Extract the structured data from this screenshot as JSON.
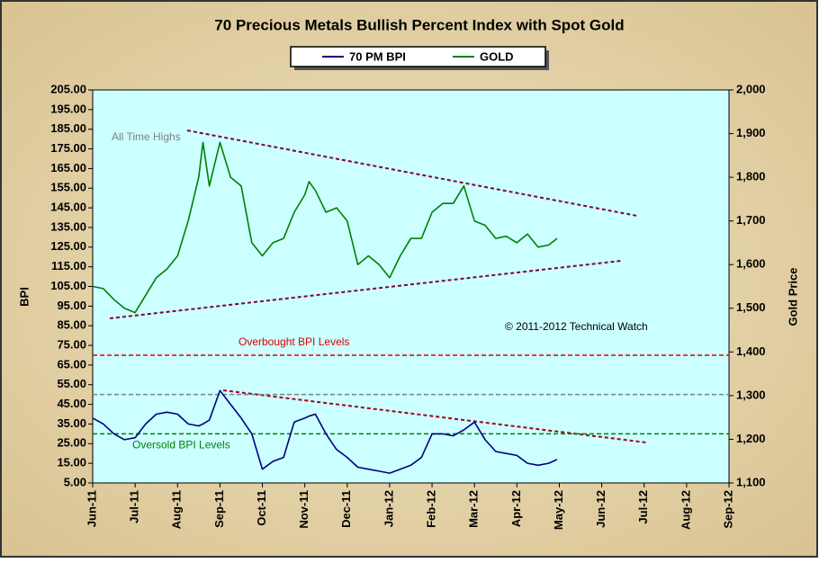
{
  "chart_data": {
    "type": "line",
    "title": "70 Precious Metals Bullish  Percent Index with Spot Gold",
    "y_label": "BPI",
    "y2_label": "Gold Price",
    "annotations": [
      "All Time Highs",
      "© 2011-2012  Technical Watch"
    ],
    "xlim": [
      0,
      15
    ],
    "xticks": [
      {
        "value": 0,
        "label": "Jun-11"
      },
      {
        "value": 1,
        "label": "Jul-11"
      },
      {
        "value": 2,
        "label": "Aug-11"
      },
      {
        "value": 3,
        "label": "Sep-11"
      },
      {
        "value": 4,
        "label": "Oct-11"
      },
      {
        "value": 5,
        "label": "Nov-11"
      },
      {
        "value": 6,
        "label": "Dec-11"
      },
      {
        "value": 7,
        "label": "Jan-12"
      },
      {
        "value": 8,
        "label": "Feb-12"
      },
      {
        "value": 9,
        "label": "Mar-12"
      },
      {
        "value": 10,
        "label": "Apr-12"
      },
      {
        "value": 11,
        "label": "May-12"
      },
      {
        "value": 12,
        "label": "Jun-12"
      },
      {
        "value": 13,
        "label": "Jul-12"
      },
      {
        "value": 14,
        "label": "Aug-12"
      },
      {
        "value": 15,
        "label": "Sep-12"
      }
    ],
    "ylim": [
      5,
      205
    ],
    "yticks": [
      {
        "value": 5,
        "label": "5.00"
      },
      {
        "value": 15,
        "label": "15.00"
      },
      {
        "value": 25,
        "label": "25.00"
      },
      {
        "value": 35,
        "label": "35.00"
      },
      {
        "value": 45,
        "label": "45.00"
      },
      {
        "value": 55,
        "label": "55.00"
      },
      {
        "value": 65,
        "label": "65.00"
      },
      {
        "value": 75,
        "label": "75.00"
      },
      {
        "value": 85,
        "label": "85.00"
      },
      {
        "value": 95,
        "label": "95.00"
      },
      {
        "value": 105,
        "label": "105.00"
      },
      {
        "value": 115,
        "label": "115.00"
      },
      {
        "value": 125,
        "label": "125.00"
      },
      {
        "value": 135,
        "label": "135.00"
      },
      {
        "value": 145,
        "label": "145.00"
      },
      {
        "value": 155,
        "label": "155.00"
      },
      {
        "value": 165,
        "label": "165.00"
      },
      {
        "value": 175,
        "label": "175.00"
      },
      {
        "value": 185,
        "label": "185.00"
      },
      {
        "value": 195,
        "label": "195.00"
      },
      {
        "value": 205,
        "label": "205.00"
      }
    ],
    "y2lim": [
      1100,
      2000
    ],
    "y2ticks": [
      {
        "value": 1100,
        "label": "1,100"
      },
      {
        "value": 1200,
        "label": "1,200"
      },
      {
        "value": 1300,
        "label": "1,300"
      },
      {
        "value": 1400,
        "label": "1,400"
      },
      {
        "value": 1500,
        "label": "1,500"
      },
      {
        "value": 1600,
        "label": "1,600"
      },
      {
        "value": 1700,
        "label": "1,700"
      },
      {
        "value": 1800,
        "label": "1,800"
      },
      {
        "value": 1900,
        "label": "1,900"
      },
      {
        "value": 2000,
        "label": "2,000"
      }
    ],
    "reference_lines": [
      {
        "value": 70,
        "color": "#e00000",
        "label": "Overbought  BPI Levels"
      },
      {
        "value": 30,
        "color": "#008000",
        "label": "Oversold  BPI Levels"
      },
      {
        "value": 50,
        "color": "#808080"
      }
    ],
    "x": [
      0,
      0.25,
      0.5,
      0.75,
      1,
      1.25,
      1.5,
      1.75,
      2,
      2.25,
      2.5,
      2.6,
      2.75,
      3,
      3.25,
      3.5,
      3.75,
      4,
      4.25,
      4.5,
      4.75,
      5,
      5.1,
      5.25,
      5.5,
      5.75,
      6,
      6.25,
      6.5,
      6.75,
      7,
      7.25,
      7.5,
      7.75,
      8,
      8.25,
      8.5,
      8.75,
      9,
      9.25,
      9.5,
      9.75,
      10,
      10.25,
      10.5,
      10.75,
      10.95
    ],
    "series": [
      {
        "name": "70 PM BPI",
        "color": "#000080",
        "values": [
          38,
          35,
          30,
          27,
          28,
          35,
          40,
          41,
          40,
          35,
          34,
          35,
          37,
          52,
          45,
          38,
          30,
          12,
          16,
          18,
          36,
          38,
          39,
          40,
          30,
          22,
          18,
          13,
          12,
          11,
          10,
          12,
          14,
          18,
          30,
          30,
          29,
          32,
          36,
          27,
          21,
          20,
          19,
          15,
          14,
          15,
          17
        ]
      },
      {
        "name": "GOLD",
        "color": "#008000",
        "axis": "y2",
        "values": [
          1550,
          1545,
          1520,
          1500,
          1490,
          1530,
          1570,
          1590,
          1620,
          1700,
          1800,
          1880,
          1780,
          1880,
          1800,
          1780,
          1650,
          1620,
          1650,
          1660,
          1720,
          1760,
          1790,
          1770,
          1720,
          1730,
          1700,
          1600,
          1620,
          1600,
          1570,
          1620,
          1660,
          1660,
          1720,
          1740,
          1740,
          1780,
          1700,
          1690,
          1660,
          1665,
          1650,
          1670,
          1640,
          1645,
          1660
        ]
      }
    ]
  }
}
